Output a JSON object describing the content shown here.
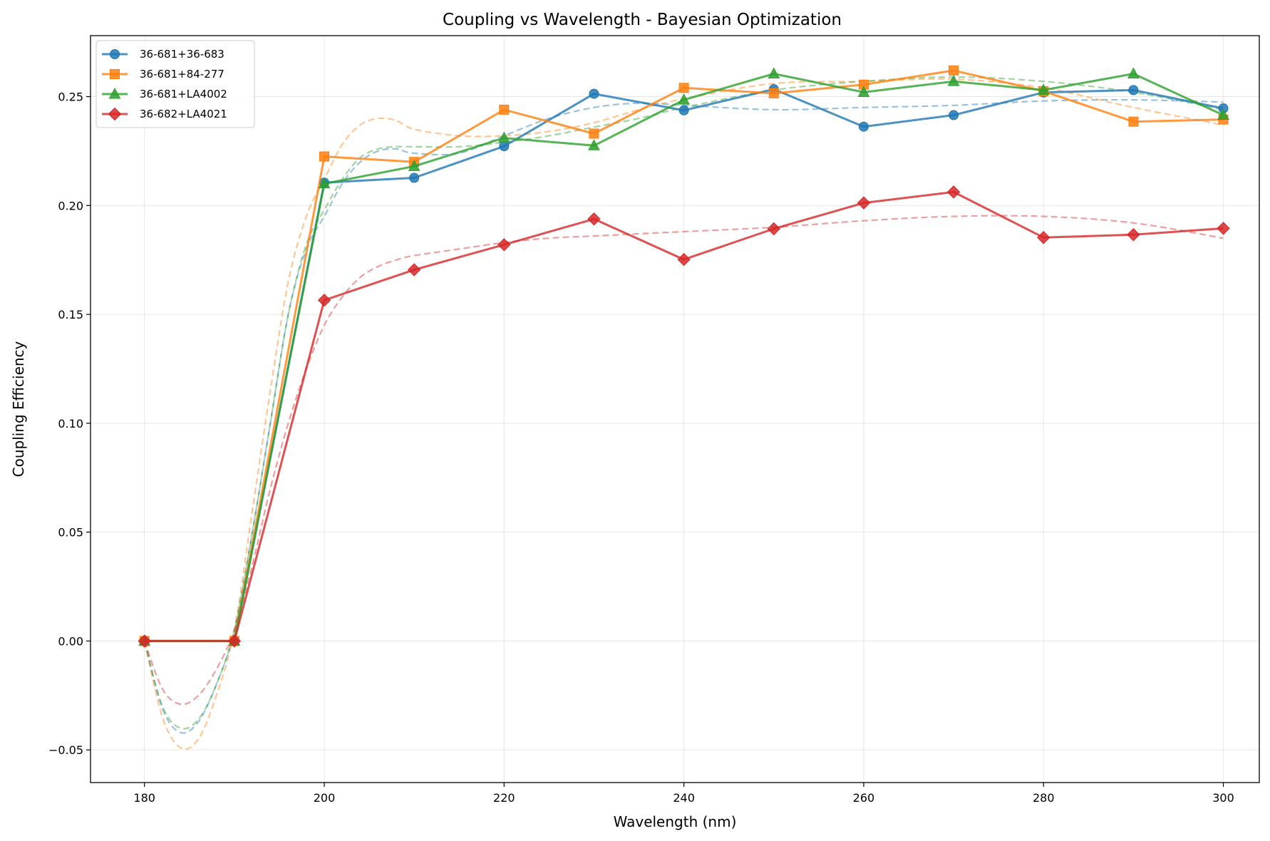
{
  "chart_data": {
    "type": "line",
    "title": "Coupling vs Wavelength - Bayesian Optimization",
    "xlabel": "Wavelength (nm)",
    "ylabel": "Coupling Efficiency",
    "xlim": [
      174,
      304
    ],
    "ylim": [
      -0.065,
      0.278
    ],
    "xticks": [
      180,
      200,
      220,
      240,
      260,
      280,
      300
    ],
    "xtick_labels": [
      "180",
      "200",
      "220",
      "240",
      "260",
      "280",
      "300"
    ],
    "yticks": [
      -0.05,
      0.0,
      0.05,
      0.1,
      0.15,
      0.2,
      0.25
    ],
    "ytick_labels": [
      "−0.05",
      "0.00",
      "0.05",
      "0.10",
      "0.15",
      "0.20",
      "0.25"
    ],
    "grid": true,
    "legend_position": "upper-left",
    "x": [
      180,
      190,
      200,
      210,
      220,
      230,
      240,
      250,
      260,
      270,
      280,
      290,
      300
    ],
    "series": [
      {
        "name": "36-681+36-683",
        "color": "#1f77b4",
        "marker": "circle",
        "values": [
          0.0,
          0.0,
          0.2105,
          0.2127,
          0.2272,
          0.2513,
          0.2437,
          0.2534,
          0.2362,
          0.2415,
          0.2519,
          0.253,
          0.2446
        ],
        "fit_x": [
          180,
          182,
          184,
          186,
          188,
          190,
          192,
          194,
          196,
          198,
          200,
          202,
          204,
          206,
          208,
          210,
          215,
          220,
          225,
          230,
          235,
          240,
          250,
          260,
          270,
          280,
          290,
          300
        ],
        "fit_y": [
          0.0,
          -0.031,
          -0.042,
          -0.037,
          -0.02,
          0.005,
          0.05,
          0.1,
          0.15,
          0.18,
          0.195,
          0.21,
          0.22,
          0.225,
          0.226,
          0.224,
          0.224,
          0.232,
          0.24,
          0.245,
          0.247,
          0.246,
          0.244,
          0.245,
          0.246,
          0.248,
          0.2485,
          0.2475
        ]
      },
      {
        "name": "36-681+84-277",
        "color": "#ff7f0e",
        "marker": "square",
        "values": [
          0.0,
          0.0,
          0.2225,
          0.22,
          0.244,
          0.233,
          0.254,
          0.2515,
          0.2555,
          0.262,
          0.2525,
          0.2385,
          0.2395
        ],
        "fit_x": [
          180,
          182,
          184,
          186,
          188,
          190,
          192,
          194,
          196,
          198,
          200,
          202,
          204,
          206,
          208,
          210,
          215,
          220,
          225,
          230,
          235,
          240,
          250,
          260,
          270,
          280,
          290,
          300
        ],
        "fit_y": [
          0.0,
          -0.035,
          -0.049,
          -0.045,
          -0.025,
          0.005,
          0.06,
          0.115,
          0.165,
          0.195,
          0.212,
          0.228,
          0.237,
          0.24,
          0.239,
          0.235,
          0.232,
          0.232,
          0.234,
          0.238,
          0.244,
          0.249,
          0.256,
          0.257,
          0.258,
          0.254,
          0.245,
          0.237
        ]
      },
      {
        "name": "36-681+LA4002",
        "color": "#2ca02c",
        "marker": "triangle",
        "values": [
          0.0,
          0.0,
          0.21,
          0.218,
          0.231,
          0.2275,
          0.2485,
          0.2605,
          0.252,
          0.257,
          0.253,
          0.2605,
          0.2415
        ],
        "fit_x": [
          180,
          182,
          184,
          186,
          188,
          190,
          192,
          194,
          196,
          198,
          200,
          202,
          204,
          206,
          208,
          210,
          215,
          220,
          225,
          230,
          235,
          240,
          250,
          260,
          270,
          280,
          290,
          300
        ],
        "fit_y": [
          0.0,
          -0.03,
          -0.04,
          -0.036,
          -0.02,
          0.005,
          0.05,
          0.1,
          0.15,
          0.182,
          0.198,
          0.212,
          0.222,
          0.226,
          0.227,
          0.227,
          0.227,
          0.229,
          0.232,
          0.236,
          0.24,
          0.245,
          0.253,
          0.257,
          0.259,
          0.257,
          0.252,
          0.244
        ]
      },
      {
        "name": "36-682+LA4021",
        "color": "#d62728",
        "marker": "diamond",
        "values": [
          0.0,
          0.0,
          0.1565,
          0.1705,
          0.182,
          0.1938,
          0.1752,
          0.1893,
          0.2012,
          0.2062,
          0.1853,
          0.1866,
          0.1895
        ],
        "fit_x": [
          180,
          182,
          184,
          186,
          188,
          190,
          192,
          194,
          196,
          198,
          200,
          202,
          204,
          206,
          208,
          210,
          215,
          220,
          225,
          230,
          235,
          240,
          250,
          260,
          270,
          280,
          290,
          300
        ],
        "fit_y": [
          0.0,
          -0.022,
          -0.029,
          -0.025,
          -0.013,
          0.005,
          0.035,
          0.07,
          0.1,
          0.125,
          0.145,
          0.158,
          0.167,
          0.172,
          0.175,
          0.177,
          0.18,
          0.183,
          0.185,
          0.186,
          0.187,
          0.188,
          0.19,
          0.193,
          0.195,
          0.195,
          0.192,
          0.185
        ]
      }
    ]
  }
}
